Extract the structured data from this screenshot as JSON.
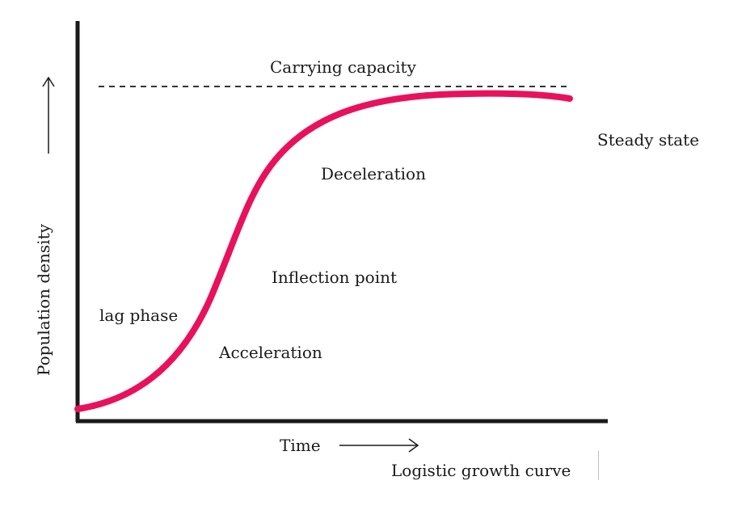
{
  "labels": {
    "carrying_capacity": "Carrying capacity",
    "steady_state": "Steady state",
    "deceleration": "Deceleration",
    "inflection_point": "Inflection point",
    "lag_phase": "lag phase",
    "acceleration": "Acceleration",
    "x_axis": "Time",
    "y_axis": "Population density",
    "caption": "Logistic growth curve"
  },
  "colors": {
    "curve": "#e8125c",
    "axis": "#1a1a1a",
    "dashed_line": "#333333",
    "text": "#1a1a1a"
  },
  "icons": {
    "y_arrow": "up-arrow-icon",
    "x_arrow": "right-arrow-icon"
  }
}
